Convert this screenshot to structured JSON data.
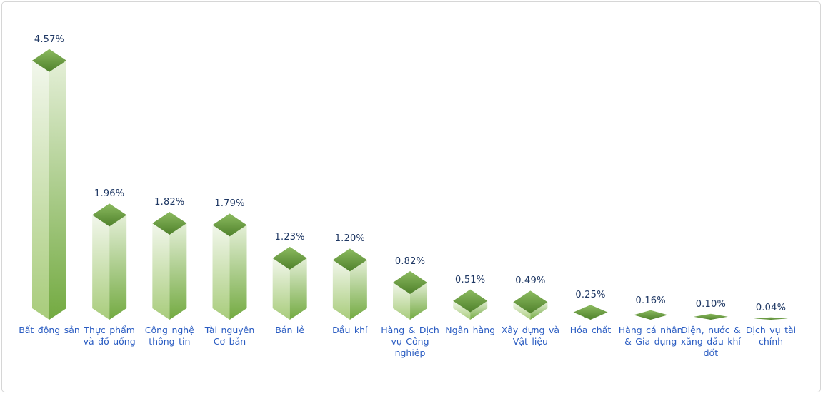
{
  "chart_data": {
    "type": "bar",
    "style": "3d-box-gradient-green",
    "title": "",
    "xlabel": "",
    "ylabel": "",
    "legend": false,
    "grid": false,
    "value_axis_visible": false,
    "ylim": [
      0,
      5.4
    ],
    "categories": [
      "Bất động sản",
      "Thực phẩm\nvà đồ uống",
      "Công nghệ\nthông tin",
      "Tài nguyên\nCơ bản",
      "Bán lẻ",
      "Dầu khí",
      "Hàng & Dịch\nvụ Công\nnghiệp",
      "Ngân hàng",
      "Xây dựng và\nVật liệu",
      "Hóa chất",
      "Hàng cá nhân\n& Gia dụng",
      "Điện, nước &\nxăng dầu khí\nđốt",
      "Dịch vụ tài\nchính"
    ],
    "values": [
      4.57,
      1.96,
      1.82,
      1.79,
      1.23,
      1.2,
      0.82,
      0.51,
      0.49,
      0.25,
      0.16,
      0.1,
      0.04
    ],
    "value_labels": [
      "4.57%",
      "1.96%",
      "1.82%",
      "1.79%",
      "1.23%",
      "1.20%",
      "0.82%",
      "0.51%",
      "0.49%",
      "0.25%",
      "0.16%",
      "0.10%",
      "0.04%"
    ]
  },
  "colors": {
    "panel_border": "#d6d6d6",
    "axis_line": "#d9d9d9",
    "value_label_text": "#1f3864",
    "category_label_text": "#2a5cc2",
    "bar_top_light": "#8cbb60",
    "bar_top_dark": "#4f812b",
    "bar_left_light": "#f2f7ec",
    "bar_left_dark": "#a8cc7b",
    "bar_right_light": "#e4efd7",
    "bar_right_dark": "#73aa41"
  }
}
